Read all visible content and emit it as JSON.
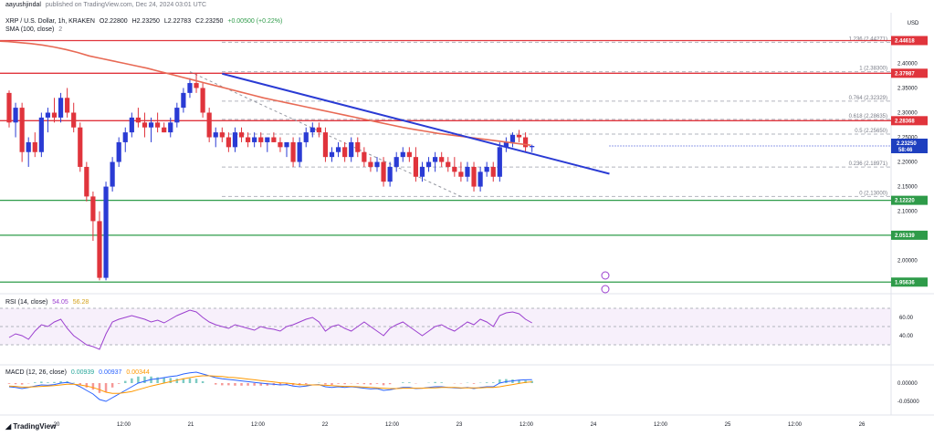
{
  "header": {
    "author": "aayushjindal",
    "published": "published on TradingView.com, Dec 24, 2024 03:01 UTC",
    "symbol": "XRP / U.S. Dollar, 1h, KRAKEN",
    "ohlc": [
      "O2.22800",
      "H2.23250",
      "L2.22783",
      "C2.23250",
      "+0.00500 (+0.22%)"
    ],
    "sma_label": "SMA (100, close)",
    "sma_value": "2"
  },
  "axis": {
    "currency": "USD"
  },
  "colors": {
    "up": "#2a3bd4",
    "down": "#e0343c",
    "sma": "#e86a55",
    "trend": "#2a3bd4",
    "resistance": "#e0343c",
    "support": "#2e9b49",
    "rsi": "#9b3fcf",
    "macd": "#2962ff",
    "signal": "#ff9800"
  },
  "chart_data": [
    {
      "type": "candlestick",
      "title": "XRP / U.S. Dollar, 1h, KRAKEN",
      "ylim": [
        1.955,
        2.46
      ],
      "y_ticks": [
        "2.40000",
        "2.35000",
        "2.30000",
        "2.25000",
        "2.20000",
        "2.15000",
        "2.10000",
        "2.00000"
      ],
      "x_ticks": [
        "20",
        "12:00",
        "21",
        "12:00",
        "22",
        "12:00",
        "23",
        "12:00",
        "24",
        "12:00",
        "25",
        "12:00",
        "26"
      ],
      "current_price": "2.23250",
      "countdown": "58:46",
      "levels": [
        {
          "label": "2.44618",
          "value": 2.44618,
          "kind": "resistance"
        },
        {
          "label": "2.37987",
          "value": 2.37987,
          "kind": "resistance"
        },
        {
          "label": "2.28368",
          "value": 2.28368,
          "kind": "resistance"
        },
        {
          "label": "2.12220",
          "value": 2.1222,
          "kind": "support"
        },
        {
          "label": "2.05139",
          "value": 2.05139,
          "kind": "support"
        },
        {
          "label": "1.95636",
          "value": 1.95636,
          "kind": "support"
        }
      ],
      "fib_levels": [
        {
          "label": "1.236 (2.44271)",
          "value": 2.44271
        },
        {
          "label": "1 (2.38300)",
          "value": 2.383
        },
        {
          "label": "0.764 (2.32329)",
          "value": 2.32329
        },
        {
          "label": "0.618 (2.28635)",
          "value": 2.28635
        },
        {
          "label": "0.5 (2.25650)",
          "value": 2.2565
        },
        {
          "label": "0.236 (2.18971)",
          "value": 2.18971
        },
        {
          "label": "0 (2.13000)",
          "value": 2.13
        }
      ],
      "candles": [
        [
          2.34,
          2.345,
          2.27,
          2.28
        ],
        [
          2.28,
          2.32,
          2.25,
          2.31
        ],
        [
          2.31,
          2.32,
          2.2,
          2.22
        ],
        [
          2.22,
          2.25,
          2.19,
          2.24
        ],
        [
          2.24,
          2.26,
          2.21,
          2.22
        ],
        [
          2.22,
          2.3,
          2.21,
          2.29
        ],
        [
          2.29,
          2.31,
          2.26,
          2.3
        ],
        [
          2.3,
          2.33,
          2.28,
          2.29
        ],
        [
          2.29,
          2.34,
          2.28,
          2.33
        ],
        [
          2.33,
          2.35,
          2.29,
          2.3
        ],
        [
          2.3,
          2.32,
          2.26,
          2.27
        ],
        [
          2.27,
          2.28,
          2.18,
          2.19
        ],
        [
          2.19,
          2.2,
          2.12,
          2.13
        ],
        [
          2.13,
          2.14,
          2.04,
          2.08
        ],
        [
          2.08,
          2.1,
          1.96,
          1.965
        ],
        [
          1.965,
          2.16,
          1.96,
          2.15
        ],
        [
          2.15,
          2.21,
          2.14,
          2.2
        ],
        [
          2.2,
          2.25,
          2.19,
          2.24
        ],
        [
          2.24,
          2.27,
          2.22,
          2.26
        ],
        [
          2.26,
          2.3,
          2.25,
          2.29
        ],
        [
          2.29,
          2.31,
          2.27,
          2.28
        ],
        [
          2.28,
          2.3,
          2.25,
          2.27
        ],
        [
          2.27,
          2.29,
          2.24,
          2.28
        ],
        [
          2.28,
          2.3,
          2.26,
          2.27
        ],
        [
          2.27,
          2.28,
          2.26,
          2.26
        ],
        [
          2.26,
          2.29,
          2.25,
          2.28
        ],
        [
          2.28,
          2.32,
          2.27,
          2.31
        ],
        [
          2.31,
          2.35,
          2.3,
          2.34
        ],
        [
          2.34,
          2.37,
          2.33,
          2.36
        ],
        [
          2.36,
          2.38,
          2.34,
          2.35
        ],
        [
          2.35,
          2.36,
          2.29,
          2.3
        ],
        [
          2.3,
          2.31,
          2.24,
          2.25
        ],
        [
          2.25,
          2.27,
          2.23,
          2.26
        ],
        [
          2.26,
          2.27,
          2.24,
          2.25
        ],
        [
          2.25,
          2.26,
          2.22,
          2.23
        ],
        [
          2.23,
          2.27,
          2.22,
          2.26
        ],
        [
          2.26,
          2.27,
          2.24,
          2.25
        ],
        [
          2.25,
          2.26,
          2.23,
          2.24
        ],
        [
          2.24,
          2.26,
          2.23,
          2.25
        ],
        [
          2.25,
          2.26,
          2.23,
          2.24
        ],
        [
          2.24,
          2.25,
          2.22,
          2.25
        ],
        [
          2.25,
          2.26,
          2.24,
          2.24
        ],
        [
          2.24,
          2.25,
          2.22,
          2.23
        ],
        [
          2.23,
          2.24,
          2.21,
          2.24
        ],
        [
          2.24,
          2.25,
          2.19,
          2.2
        ],
        [
          2.2,
          2.25,
          2.19,
          2.24
        ],
        [
          2.24,
          2.27,
          2.23,
          2.26
        ],
        [
          2.26,
          2.28,
          2.25,
          2.27
        ],
        [
          2.27,
          2.28,
          2.25,
          2.26
        ],
        [
          2.26,
          2.27,
          2.2,
          2.21
        ],
        [
          2.21,
          2.23,
          2.2,
          2.22
        ],
        [
          2.22,
          2.24,
          2.21,
          2.23
        ],
        [
          2.23,
          2.24,
          2.2,
          2.21
        ],
        [
          2.21,
          2.25,
          2.2,
          2.24
        ],
        [
          2.24,
          2.25,
          2.21,
          2.22
        ],
        [
          2.22,
          2.23,
          2.19,
          2.2
        ],
        [
          2.2,
          2.21,
          2.18,
          2.19
        ],
        [
          2.19,
          2.21,
          2.18,
          2.2
        ],
        [
          2.2,
          2.21,
          2.15,
          2.16
        ],
        [
          2.16,
          2.2,
          2.15,
          2.19
        ],
        [
          2.19,
          2.22,
          2.18,
          2.21
        ],
        [
          2.21,
          2.23,
          2.2,
          2.22
        ],
        [
          2.22,
          2.23,
          2.2,
          2.21
        ],
        [
          2.21,
          2.23,
          2.16,
          2.17
        ],
        [
          2.17,
          2.2,
          2.16,
          2.19
        ],
        [
          2.19,
          2.21,
          2.18,
          2.2
        ],
        [
          2.2,
          2.22,
          2.18,
          2.21
        ],
        [
          2.21,
          2.22,
          2.19,
          2.2
        ],
        [
          2.2,
          2.21,
          2.18,
          2.19
        ],
        [
          2.19,
          2.21,
          2.17,
          2.18
        ],
        [
          2.18,
          2.2,
          2.16,
          2.17
        ],
        [
          2.17,
          2.2,
          2.16,
          2.19
        ],
        [
          2.19,
          2.2,
          2.14,
          2.15
        ],
        [
          2.15,
          2.19,
          2.14,
          2.18
        ],
        [
          2.18,
          2.2,
          2.17,
          2.19
        ],
        [
          2.19,
          2.2,
          2.16,
          2.17
        ],
        [
          2.17,
          2.24,
          2.16,
          2.23
        ],
        [
          2.23,
          2.25,
          2.22,
          2.24
        ],
        [
          2.24,
          2.26,
          2.23,
          2.255
        ],
        [
          2.255,
          2.265,
          2.24,
          2.25
        ],
        [
          2.25,
          2.26,
          2.22,
          2.23
        ],
        [
          2.23,
          2.235,
          2.22,
          2.2325
        ]
      ]
    },
    {
      "type": "line",
      "title": "RSI (14, close)",
      "values_shown": [
        "54.05",
        "56.28"
      ],
      "y_ticks": [
        "60.00",
        "40.00"
      ],
      "ylim": [
        20,
        80
      ],
      "series": [
        {
          "values": [
            38,
            42,
            40,
            36,
            45,
            52,
            50,
            55,
            58,
            48,
            40,
            35,
            30,
            28,
            25,
            42,
            55,
            58,
            60,
            62,
            60,
            58,
            55,
            57,
            54,
            58,
            62,
            65,
            68,
            66,
            60,
            55,
            52,
            50,
            48,
            52,
            50,
            48,
            46,
            50,
            48,
            47,
            45,
            50,
            52,
            55,
            58,
            60,
            55,
            45,
            50,
            52,
            48,
            45,
            50,
            55,
            50,
            45,
            40,
            48,
            52,
            55,
            50,
            45,
            40,
            45,
            50,
            52,
            48,
            45,
            50,
            55,
            52,
            58,
            55,
            50,
            62,
            65,
            66,
            64,
            58,
            54
          ]
        }
      ],
      "bands": [
        30,
        70
      ]
    },
    {
      "type": "line",
      "title": "MACD (12, 26, close)",
      "values_shown": [
        "0.00939",
        "0.00937",
        "0.00344"
      ],
      "y_ticks": [
        "0.00000",
        "-0.05000"
      ],
      "ylim": [
        -0.07,
        0.04
      ],
      "series": [
        {
          "values": [
            -0.01,
            -0.012,
            -0.015,
            -0.012,
            -0.008,
            -0.005,
            -0.006,
            -0.004,
            0.0,
            0.002,
            -0.002,
            -0.01,
            -0.02,
            -0.03,
            -0.045,
            -0.05,
            -0.04,
            -0.03,
            -0.02,
            -0.01,
            0.0,
            0.005,
            0.01,
            0.012,
            0.015,
            0.018,
            0.02,
            0.025,
            0.028,
            0.03,
            0.025,
            0.02,
            0.015,
            0.012,
            0.01,
            0.008,
            0.006,
            0.004,
            0.002,
            0.0,
            -0.002,
            -0.003,
            -0.005,
            -0.004,
            -0.008,
            -0.01,
            -0.008,
            -0.005,
            -0.004,
            -0.01,
            -0.012,
            -0.01,
            -0.012,
            -0.01,
            -0.012,
            -0.014,
            -0.016,
            -0.015,
            -0.02,
            -0.018,
            -0.015,
            -0.012,
            -0.012,
            -0.015,
            -0.014,
            -0.012,
            -0.01,
            -0.01,
            -0.012,
            -0.013,
            -0.014,
            -0.012,
            -0.015,
            -0.012,
            -0.01,
            -0.01,
            0.0,
            0.004,
            0.006,
            0.008,
            0.009,
            0.0094
          ]
        },
        {
          "values": [
            -0.008,
            -0.009,
            -0.011,
            -0.011,
            -0.01,
            -0.009,
            -0.008,
            -0.007,
            -0.005,
            -0.003,
            -0.003,
            -0.005,
            -0.008,
            -0.012,
            -0.018,
            -0.025,
            -0.028,
            -0.028,
            -0.026,
            -0.023,
            -0.018,
            -0.013,
            -0.008,
            -0.004,
            0.0,
            0.004,
            0.008,
            0.012,
            0.015,
            0.018,
            0.02,
            0.02,
            0.019,
            0.018,
            0.016,
            0.015,
            0.013,
            0.011,
            0.009,
            0.007,
            0.005,
            0.003,
            0.001,
            0.0,
            -0.002,
            -0.004,
            -0.005,
            -0.005,
            -0.005,
            -0.006,
            -0.007,
            -0.008,
            -0.009,
            -0.009,
            -0.01,
            -0.011,
            -0.012,
            -0.013,
            -0.014,
            -0.015,
            -0.015,
            -0.014,
            -0.014,
            -0.014,
            -0.014,
            -0.013,
            -0.013,
            -0.012,
            -0.012,
            -0.012,
            -0.013,
            -0.013,
            -0.013,
            -0.013,
            -0.012,
            -0.012,
            -0.01,
            -0.007,
            -0.004,
            -0.001,
            0.002,
            0.0034
          ]
        }
      ]
    }
  ]
}
